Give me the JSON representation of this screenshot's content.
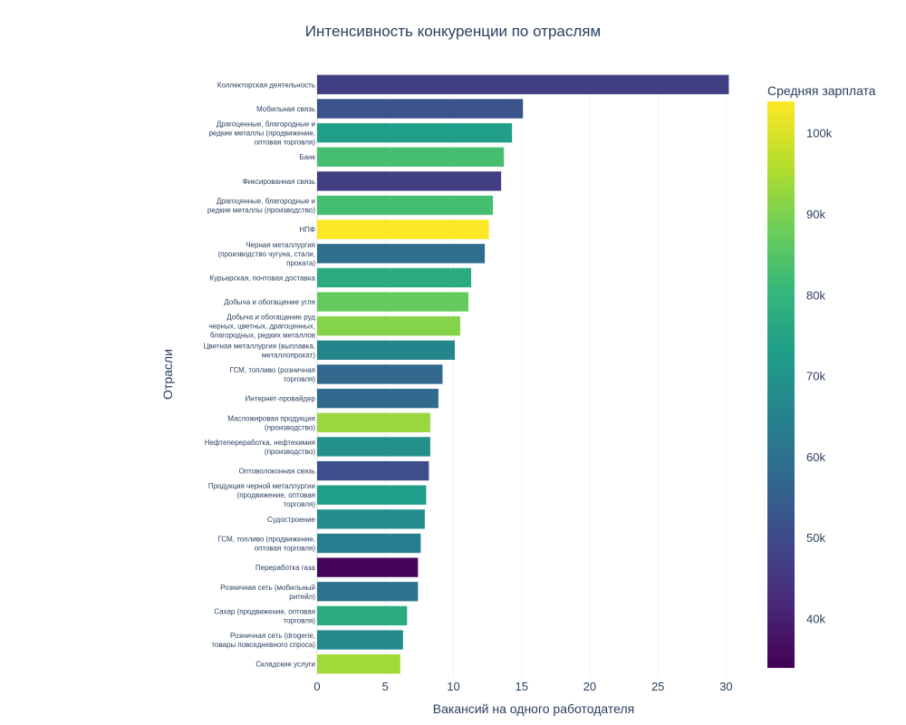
{
  "chart_data": {
    "type": "bar",
    "orientation": "horizontal",
    "title": "Интенсивность конкуренции по отраслям",
    "xlabel": "Вакансий на одного работодателя",
    "ylabel": "Отрасли",
    "xlim": [
      0,
      31.5
    ],
    "xticks": [
      0,
      5,
      10,
      15,
      20,
      25,
      30
    ],
    "grid": true,
    "colorbar": {
      "title": "Средняя зарплата",
      "colorscale": "viridis",
      "range": [
        34000,
        104000
      ],
      "ticks": [
        40000,
        50000,
        60000,
        70000,
        80000,
        90000,
        100000
      ],
      "tick_labels": [
        "40k",
        "50k",
        "60k",
        "70k",
        "80k",
        "90k",
        "100k"
      ]
    },
    "bars": [
      {
        "label": [
          "Коллекторская деятельность"
        ],
        "value": 30.2,
        "salary": 47000
      },
      {
        "label": [
          "Мобильная связь"
        ],
        "value": 15.1,
        "salary": 52000
      },
      {
        "label": [
          "Драгоценные, благородные и",
          "редкие металлы (продвижение,",
          "оптовая торговля)"
        ],
        "value": 14.3,
        "salary": 73000
      },
      {
        "label": [
          "Банк"
        ],
        "value": 13.7,
        "salary": 83000
      },
      {
        "label": [
          "Фиксированная связь"
        ],
        "value": 13.5,
        "salary": 47000
      },
      {
        "label": [
          "Драгоценные, благородные и",
          "редкие металлы (производство)"
        ],
        "value": 12.9,
        "salary": 83000
      },
      {
        "label": [
          "НПФ"
        ],
        "value": 12.6,
        "salary": 104000
      },
      {
        "label": [
          "Черная металлургия",
          "(производство чугуна, стали,",
          "проката)"
        ],
        "value": 12.3,
        "salary": 59000
      },
      {
        "label": [
          "Курьерская, почтовая доставка"
        ],
        "value": 11.3,
        "salary": 77000
      },
      {
        "label": [
          "Добыча и обогащение угля"
        ],
        "value": 11.1,
        "salary": 87000
      },
      {
        "label": [
          "Добыча и обогащение руд",
          "черных, цветных, драгоценных,",
          "благородных, редких металлов"
        ],
        "value": 10.5,
        "salary": 91000
      },
      {
        "label": [
          "Цветная металлургия (выплавка,",
          "металлопрокат)"
        ],
        "value": 10.1,
        "salary": 66000
      },
      {
        "label": [
          "ГСМ, топливо (розничная",
          "торговля)"
        ],
        "value": 9.2,
        "salary": 57000
      },
      {
        "label": [
          "Интернет-провайдер"
        ],
        "value": 8.9,
        "salary": 58000
      },
      {
        "label": [
          "Масложировая продукция",
          "(производство)"
        ],
        "value": 8.3,
        "salary": 93000
      },
      {
        "label": [
          "Нефтепереработка, нефтехимия",
          "(производство)"
        ],
        "value": 8.3,
        "salary": 69000
      },
      {
        "label": [
          "Оптоволоконная связь"
        ],
        "value": 8.2,
        "salary": 51000
      },
      {
        "label": [
          "Продукция черной металлургии",
          "(продвижение, оптовая",
          "торговля)"
        ],
        "value": 8.0,
        "salary": 73000
      },
      {
        "label": [
          "Судостроение"
        ],
        "value": 7.9,
        "salary": 68000
      },
      {
        "label": [
          "ГСМ, топливо (продвижение,",
          "оптовая торговля)"
        ],
        "value": 7.6,
        "salary": 64000
      },
      {
        "label": [
          "Переработка газа"
        ],
        "value": 7.4,
        "salary": 35000
      },
      {
        "label": [
          "Розничная сеть (мобильный",
          "ритейл)"
        ],
        "value": 7.4,
        "salary": 61000
      },
      {
        "label": [
          "Сахар (продвижение, оптовая",
          "торговля)"
        ],
        "value": 6.6,
        "salary": 77000
      },
      {
        "label": [
          "Розничная сеть (drogerie,",
          "товары повседневного спроса)"
        ],
        "value": 6.3,
        "salary": 67000
      },
      {
        "label": [
          "Складские услуги"
        ],
        "value": 6.1,
        "salary": 94000
      }
    ]
  }
}
